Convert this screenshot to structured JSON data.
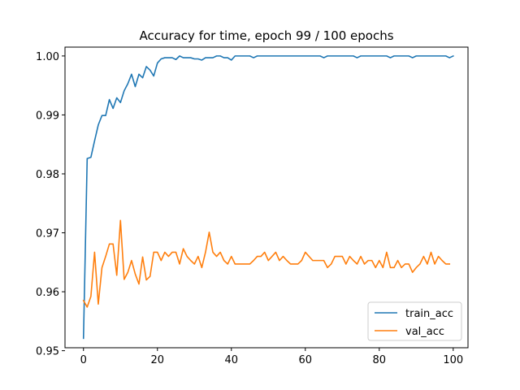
{
  "chart_data": {
    "type": "line",
    "title": "Accuracy for time, epoch 99 / 100 epochs",
    "xlabel": "",
    "ylabel": "",
    "xlim": [
      -5,
      104
    ],
    "ylim": [
      0.9505,
      1.0015
    ],
    "x_ticks": [
      0,
      20,
      40,
      60,
      80,
      100
    ],
    "y_ticks": [
      0.95,
      0.96,
      0.97,
      0.98,
      0.99,
      1.0
    ],
    "y_tick_labels": [
      "0.95",
      "0.96",
      "0.97",
      "0.98",
      "0.99",
      "1.00"
    ],
    "grid": false,
    "legend_position": "lower-right",
    "series": [
      {
        "name": "train_acc",
        "color": "#1f77b4",
        "values": [
          0.9521,
          0.9826,
          0.9828,
          0.9856,
          0.9883,
          0.9899,
          0.9899,
          0.9926,
          0.9911,
          0.9929,
          0.9921,
          0.9941,
          0.9953,
          0.9969,
          0.9948,
          0.9969,
          0.9963,
          0.9982,
          0.9976,
          0.9966,
          0.9988,
          0.9995,
          0.9997,
          0.9997,
          0.9997,
          0.9994,
          1.0,
          0.9997,
          0.9997,
          0.9997,
          0.9995,
          0.9995,
          0.9993,
          0.9997,
          0.9997,
          0.9997,
          1.0,
          1.0,
          0.9997,
          0.9997,
          0.9993,
          1.0,
          1.0,
          1.0,
          1.0,
          1.0,
          0.9997,
          1.0,
          1.0,
          1.0,
          1.0,
          1.0,
          1.0,
          1.0,
          1.0,
          1.0,
          1.0,
          1.0,
          1.0,
          1.0,
          1.0,
          1.0,
          1.0,
          1.0,
          1.0,
          0.9997,
          1.0,
          1.0,
          1.0,
          1.0,
          1.0,
          1.0,
          1.0,
          1.0,
          0.9997,
          1.0,
          1.0,
          1.0,
          1.0,
          1.0,
          1.0,
          1.0,
          1.0,
          0.9997,
          1.0,
          1.0,
          1.0,
          1.0,
          1.0,
          0.9997,
          1.0,
          1.0,
          1.0,
          1.0,
          1.0,
          1.0,
          1.0,
          1.0,
          1.0,
          0.9997,
          1.0
        ]
      },
      {
        "name": "val_acc",
        "color": "#ff7f0e",
        "values": [
          0.9585,
          0.9574,
          0.9592,
          0.9667,
          0.9579,
          0.9641,
          0.966,
          0.9681,
          0.9681,
          0.9628,
          0.9721,
          0.9621,
          0.9633,
          0.9653,
          0.963,
          0.9613,
          0.9659,
          0.962,
          0.9626,
          0.9667,
          0.9667,
          0.9653,
          0.9667,
          0.966,
          0.9667,
          0.9667,
          0.9647,
          0.9673,
          0.966,
          0.9653,
          0.9647,
          0.966,
          0.9641,
          0.9667,
          0.9701,
          0.9667,
          0.966,
          0.9667,
          0.9653,
          0.9647,
          0.966,
          0.9647,
          0.9647,
          0.9647,
          0.9647,
          0.9647,
          0.9653,
          0.966,
          0.966,
          0.9667,
          0.9653,
          0.966,
          0.9667,
          0.9653,
          0.966,
          0.9653,
          0.9647,
          0.9647,
          0.9647,
          0.9653,
          0.9667,
          0.966,
          0.9653,
          0.9653,
          0.9653,
          0.9653,
          0.9641,
          0.9647,
          0.966,
          0.966,
          0.966,
          0.9647,
          0.966,
          0.9653,
          0.9647,
          0.966,
          0.9647,
          0.9653,
          0.9653,
          0.9641,
          0.9653,
          0.9641,
          0.9667,
          0.9641,
          0.9641,
          0.9653,
          0.9641,
          0.9647,
          0.9647,
          0.9633,
          0.9641,
          0.9647,
          0.966,
          0.9647,
          0.9667,
          0.9647,
          0.966,
          0.9653,
          0.9647,
          0.9647
        ]
      }
    ]
  }
}
